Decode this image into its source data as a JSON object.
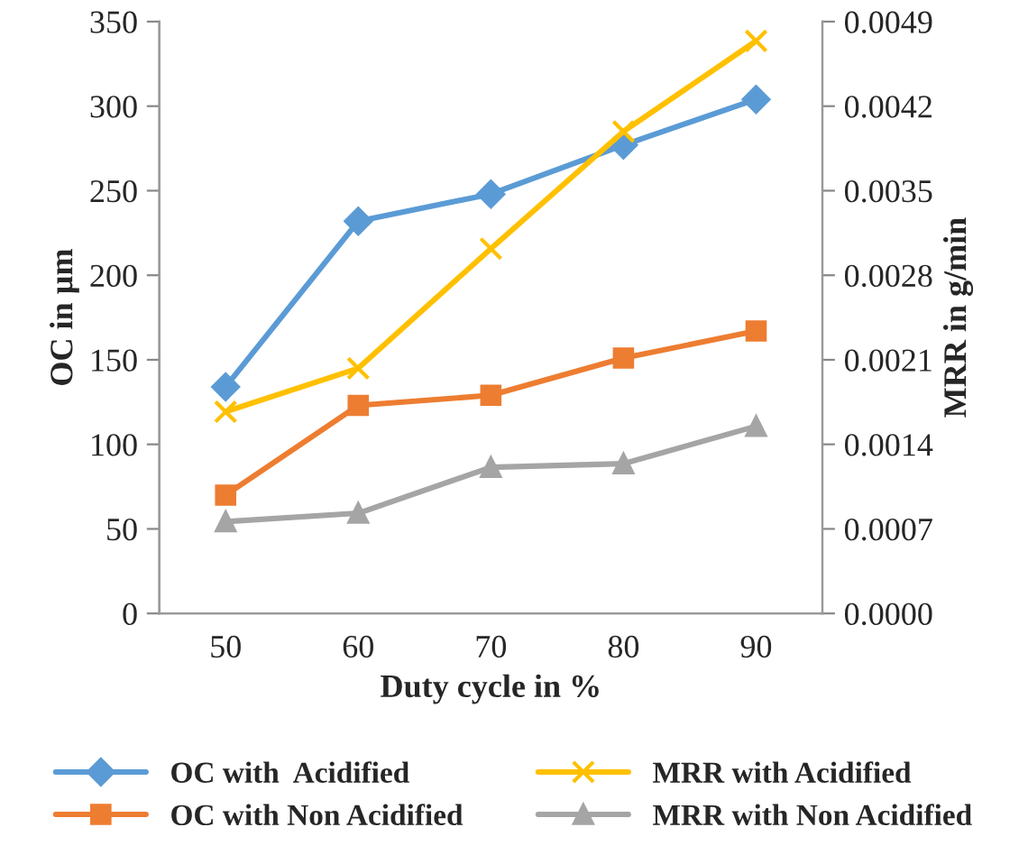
{
  "chart_data": {
    "type": "line",
    "xlabel": "Duty cycle in %",
    "ylabel": "OC in µm",
    "y2label": "MRR in g/min",
    "categories": [
      "50",
      "60",
      "70",
      "80",
      "90"
    ],
    "series": [
      {
        "name": "OC with  Acidified",
        "color": "#5b9bd5",
        "marker": "diamond",
        "values": [
          134,
          232,
          248,
          277,
          304
        ]
      },
      {
        "name": "OC with Non Acidified",
        "color": "#ed7d31",
        "marker": "square",
        "values": [
          70,
          123,
          129,
          151,
          167
        ]
      },
      {
        "name": "MRR with Acidified",
        "color": "#ffc000",
        "marker": "cross",
        "axis": "y2",
        "values": [
          0.00167,
          0.00203,
          0.00302,
          0.00399,
          0.00474
        ]
      },
      {
        "name": "MRR with Non Acidified",
        "color": "#a5a5a5",
        "marker": "triangle",
        "axis": "y2",
        "values": [
          0.00076,
          0.00083,
          0.00121,
          0.00124,
          0.00155
        ]
      }
    ],
    "ylim": [
      0,
      350
    ],
    "yticks": [
      0,
      50,
      100,
      150,
      200,
      250,
      300,
      350
    ],
    "y2lim": [
      0,
      0.0049
    ],
    "y2ticks": [
      {
        "value": 0,
        "label": "0.0000"
      },
      {
        "value": 0.0007,
        "label": "0.0007"
      },
      {
        "value": 0.0014,
        "label": "0.0014"
      },
      {
        "value": 0.0021,
        "label": "0.0021"
      },
      {
        "value": 0.0028,
        "label": "0.0028"
      },
      {
        "value": 0.0035,
        "label": "0.0035"
      },
      {
        "value": 0.0042,
        "label": "0.0042"
      },
      {
        "value": 0.0049,
        "label": "0.0049"
      }
    ],
    "grid": false,
    "legend": "bottom",
    "line_style": "solid"
  }
}
